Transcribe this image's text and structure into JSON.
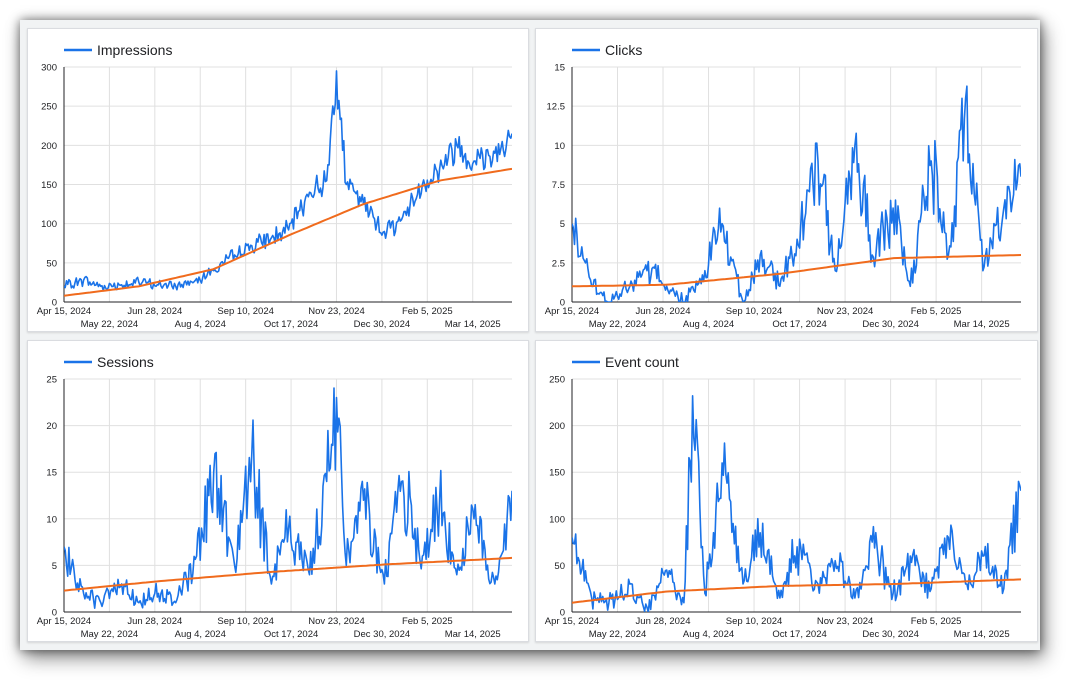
{
  "colors": {
    "series": "#1a73e8",
    "trend": "#f06b1d"
  },
  "chart_data": [
    {
      "type": "line",
      "legend": "Impressions",
      "legend_position": "top-left",
      "grid": true,
      "x_range": [
        "2024-04-15",
        "2025-04-15"
      ],
      "x_ticks_row1": [
        "Apr 15, 2024",
        "Jun 28, 2024",
        "Sep 10, 2024",
        "Nov 23, 2024",
        "Feb 5, 2025"
      ],
      "x_ticks_row2": [
        "May 22, 2024",
        "Aug 4, 2024",
        "Oct 17, 2024",
        "Dec 30, 2024",
        "Mar 14, 2025"
      ],
      "ylim": [
        0,
        300
      ],
      "y_ticks": [
        "0",
        "50",
        "100",
        "150",
        "200",
        "250",
        "300"
      ],
      "series": [
        {
          "name": "Impressions",
          "x": [
            "2024-04-15",
            "2024-05-01",
            "2024-05-15",
            "2024-06-01",
            "2024-06-15",
            "2024-07-01",
            "2024-07-15",
            "2024-08-01",
            "2024-08-15",
            "2024-09-01",
            "2024-09-15",
            "2024-10-01",
            "2024-10-15",
            "2024-11-01",
            "2024-11-15",
            "2024-11-23",
            "2024-12-01",
            "2024-12-15",
            "2025-01-01",
            "2025-01-15",
            "2025-02-01",
            "2025-02-15",
            "2025-03-01",
            "2025-03-15",
            "2025-04-01",
            "2025-04-15"
          ],
          "values": [
            20,
            28,
            20,
            22,
            25,
            22,
            20,
            30,
            40,
            60,
            72,
            82,
            92,
            140,
            155,
            295,
            150,
            125,
            90,
            105,
            150,
            170,
            200,
            180,
            190,
            215
          ]
        },
        {
          "name": "",
          "kind": "trend",
          "x": [
            "2024-04-15",
            "2024-06-15",
            "2024-08-15",
            "2024-10-15",
            "2024-12-15",
            "2025-02-15",
            "2025-04-15"
          ],
          "values": [
            8,
            20,
            42,
            85,
            125,
            155,
            170
          ]
        }
      ]
    },
    {
      "type": "line",
      "legend": "Clicks",
      "legend_position": "top-left",
      "grid": true,
      "x_range": [
        "2024-04-15",
        "2025-04-15"
      ],
      "x_ticks_row1": [
        "Apr 15, 2024",
        "Jun 28, 2024",
        "Sep 10, 2024",
        "Nov 23, 2024",
        "Feb 5, 2025"
      ],
      "x_ticks_row2": [
        "May 22, 2024",
        "Aug 4, 2024",
        "Oct 17, 2024",
        "Dec 30, 2024",
        "Mar 14, 2025"
      ],
      "ylim": [
        0,
        15
      ],
      "y_ticks": [
        "0",
        "2.5",
        "5",
        "7.5",
        "10",
        "12.5",
        "15"
      ],
      "series": [
        {
          "name": "Clicks",
          "x": [
            "2024-04-15",
            "2024-05-01",
            "2024-05-15",
            "2024-06-01",
            "2024-06-15",
            "2024-07-01",
            "2024-07-15",
            "2024-08-01",
            "2024-08-15",
            "2024-09-01",
            "2024-09-15",
            "2024-10-01",
            "2024-10-15",
            "2024-11-01",
            "2024-11-15",
            "2024-12-01",
            "2024-12-15",
            "2025-01-01",
            "2025-01-15",
            "2025-02-01",
            "2025-02-15",
            "2025-03-01",
            "2025-03-15",
            "2025-04-01",
            "2025-04-15"
          ],
          "values": [
            5,
            1,
            0,
            1,
            2,
            1,
            0,
            2,
            5,
            0,
            3,
            1,
            4,
            9,
            2,
            10,
            3,
            6,
            1,
            9,
            3,
            13,
            2,
            6,
            8
          ]
        },
        {
          "name": "",
          "kind": "trend",
          "x": [
            "2024-04-15",
            "2024-07-01",
            "2024-10-01",
            "2025-01-01",
            "2025-04-15"
          ],
          "values": [
            1,
            1.1,
            1.8,
            2.8,
            3
          ]
        }
      ]
    },
    {
      "type": "line",
      "legend": "Sessions",
      "legend_position": "top-left",
      "grid": true,
      "x_range": [
        "2024-04-15",
        "2025-04-15"
      ],
      "x_ticks_row1": [
        "Apr 15, 2024",
        "Jun 28, 2024",
        "Sep 10, 2024",
        "Nov 23, 2024",
        "Feb 5, 2025"
      ],
      "x_ticks_row2": [
        "May 22, 2024",
        "Aug 4, 2024",
        "Oct 17, 2024",
        "Dec 30, 2024",
        "Mar 14, 2025"
      ],
      "ylim": [
        0,
        25
      ],
      "y_ticks": [
        "0",
        "5",
        "10",
        "15",
        "20",
        "25"
      ],
      "series": [
        {
          "name": "Sessions",
          "x": [
            "2024-04-15",
            "2024-05-01",
            "2024-05-15",
            "2024-06-01",
            "2024-06-15",
            "2024-07-01",
            "2024-07-15",
            "2024-08-01",
            "2024-08-15",
            "2024-09-01",
            "2024-09-15",
            "2024-10-01",
            "2024-10-15",
            "2024-11-01",
            "2024-11-15",
            "2024-11-23",
            "2024-12-01",
            "2024-12-15",
            "2025-01-01",
            "2025-01-15",
            "2025-02-01",
            "2025-02-15",
            "2025-03-01",
            "2025-03-15",
            "2025-04-01",
            "2025-04-15"
          ],
          "values": [
            7,
            2,
            1,
            3,
            1,
            2,
            1,
            6,
            15,
            5,
            17,
            3,
            9,
            4,
            14,
            23,
            5,
            12,
            3,
            14,
            6,
            12,
            4,
            10,
            3,
            13
          ]
        },
        {
          "name": "",
          "kind": "trend",
          "x": [
            "2024-04-15",
            "2024-07-01",
            "2024-10-01",
            "2025-01-01",
            "2025-04-15"
          ],
          "values": [
            2.3,
            3.3,
            4.3,
            5.1,
            5.8
          ]
        }
      ]
    },
    {
      "type": "line",
      "legend": "Event count",
      "legend_position": "top-left",
      "grid": true,
      "x_range": [
        "2024-04-15",
        "2025-04-15"
      ],
      "x_ticks_row1": [
        "Apr 15, 2024",
        "Jun 28, 2024",
        "Sep 10, 2024",
        "Nov 23, 2024",
        "Feb 5, 2025"
      ],
      "x_ticks_row2": [
        "May 22, 2024",
        "Aug 4, 2024",
        "Oct 17, 2024",
        "Dec 30, 2024",
        "Mar 14, 2025"
      ],
      "ylim": [
        0,
        250
      ],
      "y_ticks": [
        "0",
        "50",
        "100",
        "150",
        "200",
        "250"
      ],
      "series": [
        {
          "name": "Event count",
          "x": [
            "2024-04-15",
            "2024-05-01",
            "2024-05-15",
            "2024-06-01",
            "2024-06-15",
            "2024-07-01",
            "2024-07-15",
            "2024-07-22",
            "2024-08-01",
            "2024-08-15",
            "2024-09-01",
            "2024-09-15",
            "2024-10-01",
            "2024-10-15",
            "2024-11-01",
            "2024-11-15",
            "2024-12-01",
            "2024-12-15",
            "2025-01-01",
            "2025-01-15",
            "2025-02-01",
            "2025-02-15",
            "2025-03-01",
            "2025-03-15",
            "2025-04-01",
            "2025-04-15"
          ],
          "values": [
            80,
            15,
            10,
            30,
            5,
            45,
            10,
            232,
            20,
            160,
            30,
            85,
            15,
            70,
            30,
            55,
            15,
            75,
            20,
            60,
            25,
            80,
            30,
            60,
            25,
            130
          ]
        },
        {
          "name": "",
          "kind": "trend",
          "x": [
            "2024-04-15",
            "2024-07-01",
            "2024-10-01",
            "2025-01-01",
            "2025-04-15"
          ],
          "values": [
            10,
            22,
            28,
            30,
            35
          ]
        }
      ]
    }
  ]
}
